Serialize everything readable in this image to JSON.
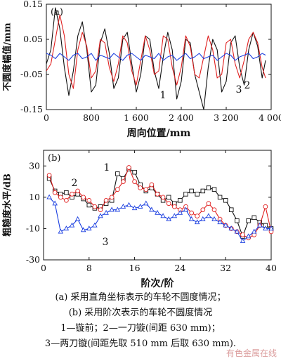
{
  "chart_data": [
    {
      "type": "line",
      "panel_label": "(a)",
      "xlabel": "周向位置/mm",
      "ylabel": "不圆度幅值/mm",
      "xlim": [
        0,
        4000
      ],
      "ylim": [
        -0.15,
        0.15
      ],
      "xticks": [
        0,
        800,
        1600,
        2400,
        3200,
        4000
      ],
      "xtick_labels": [
        "0",
        "800",
        "1 600",
        "2 400",
        "3 200",
        "4 000"
      ],
      "yticks": [
        -0.15,
        -0.05,
        0.05,
        0.15
      ],
      "ytick_labels": [
        "-0.15",
        "-0.05",
        "0.05",
        "0.15"
      ],
      "grid": false,
      "annotations": [
        "1",
        "2",
        "3"
      ],
      "series": [
        {
          "color": "#111111",
          "x": [
            0,
            80,
            160,
            240,
            320,
            400,
            480,
            560,
            640,
            720,
            800,
            880,
            960,
            1040,
            1120,
            1200,
            1280,
            1360,
            1440,
            1520,
            1600,
            1680,
            1760,
            1840,
            1920,
            2000,
            2080,
            2160,
            2240,
            2320,
            2400,
            2480,
            2560,
            2640,
            2720,
            2800,
            2880,
            2960,
            3040,
            3120,
            3200,
            3280,
            3360,
            3440,
            3520,
            3600,
            3680,
            3760,
            3840,
            3900
          ],
          "y": [
            -0.02,
            0.02,
            0.14,
            0.08,
            -0.03,
            -0.11,
            -0.04,
            0.06,
            0.1,
            0.02,
            -0.1,
            -0.08,
            0.04,
            0.08,
            0.01,
            -0.09,
            -0.06,
            0.05,
            0.07,
            -0.02,
            -0.1,
            -0.05,
            0.06,
            0.05,
            -0.04,
            -0.09,
            0.0,
            0.07,
            0.02,
            -0.12,
            -0.07,
            0.05,
            0.04,
            -0.05,
            -0.1,
            -0.15,
            -0.03,
            0.05,
            0.02,
            -0.1,
            -0.07,
            0.04,
            0.06,
            -0.03,
            -0.08,
            0.02,
            0.07,
            0.03,
            -0.06,
            -0.01
          ]
        },
        {
          "color": "#e02020",
          "x": [
            0,
            80,
            160,
            240,
            320,
            400,
            480,
            560,
            640,
            720,
            800,
            880,
            960,
            1040,
            1120,
            1200,
            1280,
            1360,
            1440,
            1520,
            1600,
            1680,
            1760,
            1840,
            1920,
            2000,
            2080,
            2160,
            2240,
            2320,
            2400,
            2480,
            2560,
            2640,
            2720,
            2800,
            2880,
            2960,
            3040,
            3120,
            3200,
            3280,
            3360,
            3440,
            3520,
            3600,
            3680,
            3760,
            3840,
            3900
          ],
          "y": [
            -0.04,
            -0.02,
            0.05,
            0.12,
            0.06,
            -0.05,
            -0.09,
            0.02,
            0.07,
            0.03,
            -0.06,
            -0.04,
            0.05,
            0.04,
            -0.03,
            -0.07,
            -0.02,
            0.06,
            0.04,
            -0.04,
            -0.08,
            -0.01,
            0.06,
            0.02,
            -0.05,
            -0.04,
            0.06,
            0.05,
            -0.03,
            -0.08,
            -0.03,
            0.06,
            0.03,
            -0.05,
            -0.06,
            0.0,
            0.06,
            0.02,
            -0.06,
            -0.05,
            0.04,
            0.05,
            -0.02,
            -0.06,
            -0.01,
            0.05,
            0.07,
            0.04,
            -0.03,
            -0.06
          ]
        },
        {
          "color": "#1a3ee0",
          "x": [
            0,
            80,
            160,
            240,
            320,
            400,
            480,
            560,
            640,
            720,
            800,
            880,
            960,
            1040,
            1120,
            1200,
            1280,
            1360,
            1440,
            1520,
            1600,
            1680,
            1760,
            1840,
            1920,
            2000,
            2080,
            2160,
            2240,
            2320,
            2400,
            2480,
            2560,
            2640,
            2720,
            2800,
            2880,
            2960,
            3040,
            3120,
            3200,
            3280,
            3360,
            3440,
            3520,
            3600,
            3680,
            3760,
            3840,
            3900
          ],
          "y": [
            0.01,
            0.005,
            -0.005,
            0.01,
            0.0,
            -0.01,
            0.005,
            0.01,
            -0.005,
            0.0,
            0.01,
            -0.01,
            0.005,
            0.0,
            -0.005,
            0.01,
            0.0,
            -0.01,
            0.005,
            0.01,
            0.0,
            -0.01,
            0.005,
            0.0,
            -0.005,
            0.01,
            -0.01,
            0.0,
            0.005,
            -0.01,
            0.0,
            0.01,
            -0.005,
            0.0,
            0.01,
            -0.005,
            0.0,
            0.005,
            -0.01,
            0.0,
            0.01,
            0.005,
            -0.01,
            0.0,
            0.005,
            0.01,
            -0.005,
            0.0,
            0.01,
            0.005
          ]
        }
      ]
    },
    {
      "type": "line",
      "panel_label": "(b)",
      "xlabel": "阶次/阶",
      "ylabel": "粗糙度水平/dB",
      "xlim": [
        0,
        40
      ],
      "ylim": [
        -30,
        40
      ],
      "xticks": [
        0,
        8,
        16,
        24,
        32,
        40
      ],
      "xtick_labels": [
        "0",
        "8",
        "16",
        "24",
        "32",
        "40"
      ],
      "yticks": [
        -30,
        -10,
        10,
        30
      ],
      "ytick_labels": [
        "-30",
        "-10",
        "10",
        "30"
      ],
      "grid": false,
      "annotations": [
        "1",
        "2",
        "3"
      ],
      "series": [
        {
          "color": "#111111",
          "marker": "square",
          "x": [
            1,
            2,
            3,
            4,
            5,
            6,
            7,
            8,
            9,
            10,
            11,
            12,
            13,
            14,
            15,
            16,
            17,
            18,
            19,
            20,
            21,
            22,
            23,
            24,
            25,
            26,
            27,
            28,
            29,
            30,
            31,
            32,
            33,
            34,
            35,
            36,
            37,
            38,
            39,
            40
          ],
          "y": [
            22,
            14,
            12,
            13,
            10,
            12,
            9,
            5,
            3,
            4,
            6,
            8,
            25,
            22,
            28,
            26,
            18,
            14,
            16,
            12,
            8,
            10,
            6,
            8,
            12,
            14,
            12,
            14,
            16,
            15,
            10,
            8,
            2,
            -5,
            -15,
            -5,
            -3,
            -6,
            -8,
            -10
          ]
        },
        {
          "color": "#e02020",
          "marker": "circle",
          "x": [
            1,
            2,
            3,
            4,
            5,
            6,
            7,
            8,
            9,
            10,
            11,
            12,
            13,
            14,
            15,
            16,
            17,
            18,
            19,
            20,
            21,
            22,
            23,
            24,
            25,
            26,
            27,
            28,
            29,
            30,
            31,
            32,
            33,
            34,
            35,
            36,
            37,
            38,
            39,
            40
          ],
          "y": [
            24,
            13,
            10,
            8,
            12,
            14,
            10,
            8,
            4,
            2,
            8,
            10,
            15,
            20,
            29,
            20,
            16,
            15,
            18,
            12,
            10,
            6,
            4,
            2,
            4,
            0,
            -2,
            2,
            6,
            2,
            -4,
            -8,
            -10,
            -12,
            -14,
            -16,
            -14,
            -8,
            4,
            -12
          ]
        },
        {
          "color": "#1a3ee0",
          "marker": "triangle",
          "x": [
            1,
            2,
            3,
            4,
            5,
            6,
            7,
            8,
            9,
            10,
            11,
            12,
            13,
            14,
            15,
            16,
            17,
            18,
            19,
            20,
            21,
            22,
            23,
            24,
            25,
            26,
            27,
            28,
            29,
            30,
            31,
            32,
            33,
            34,
            35,
            36,
            37,
            38,
            39,
            40
          ],
          "y": [
            10,
            6,
            -12,
            -10,
            -8,
            -4,
            -11,
            -10,
            -8,
            -2,
            0,
            2,
            2,
            4,
            5,
            3,
            4,
            6,
            2,
            0,
            -2,
            -4,
            -2,
            0,
            2,
            -4,
            -6,
            -4,
            -2,
            -4,
            -6,
            -8,
            -10,
            -12,
            -18,
            -15,
            -12,
            -8,
            -10,
            -10
          ]
        }
      ]
    }
  ],
  "captions": [
    "(a) 采用直角坐标表示的车轮不圆度情况；",
    "(b) 采用阶次表示的车轮不圆度情况",
    "1—镟前；2—一刀镟(间距 630 mm)；",
    "3—两刀镟(间距先取 510 mm 后取 630 mm)."
  ],
  "watermark": "有色金属在线"
}
